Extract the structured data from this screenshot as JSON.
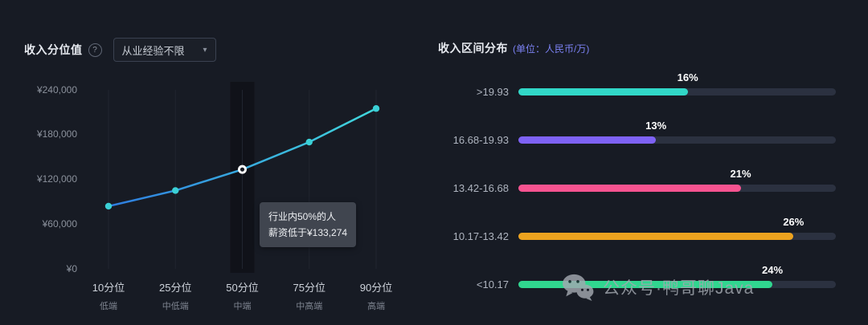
{
  "left_panel": {
    "title": "收入分位值",
    "help_glyph": "?",
    "dropdown_value": "从业经验不限",
    "dropdown_caret": "▾"
  },
  "right_panel": {
    "title": "收入区间分布",
    "subtitle": "(单位：人民币/万)"
  },
  "chart_data": [
    {
      "type": "line",
      "title": "收入分位值",
      "categories": [
        "10分位",
        "25分位",
        "50分位",
        "75分位",
        "90分位"
      ],
      "category_sublabels": [
        "低端",
        "中低端",
        "中端",
        "中高端",
        "高端"
      ],
      "values": [
        84000,
        105000,
        133274,
        170000,
        215000
      ],
      "ylim": [
        0,
        240000
      ],
      "ylabels": [
        "¥240,000",
        "¥180,000",
        "¥120,000",
        "¥60,000",
        "¥0"
      ],
      "highlight_index": 2,
      "tooltip": {
        "line1": "行业内50%的人",
        "line2": "薪资低于¥133,274"
      },
      "line_color_start": "#2e7ce0",
      "line_color_end": "#41d8dc",
      "dot_color": "#3bd0d6",
      "grid": "vertical-only",
      "legend": "none"
    },
    {
      "type": "bar",
      "orientation": "horizontal",
      "title": "收入区间分布",
      "categories": [
        ">19.93",
        "16.68-19.93",
        "13.42-16.68",
        "10.17-13.42",
        "<10.17"
      ],
      "values": [
        16,
        13,
        21,
        26,
        24
      ],
      "value_labels": [
        "16%",
        "13%",
        "21%",
        "26%",
        "24%"
      ],
      "colors": [
        "#31d7c7",
        "#7e62f5",
        "#f75390",
        "#eda31f",
        "#30d68f"
      ],
      "track_color": "#2b3140",
      "axis_max": 30,
      "legend": "none"
    }
  ],
  "watermark": {
    "text": "公众号·鸭哥聊Java",
    "icon": "wechat-icon"
  }
}
